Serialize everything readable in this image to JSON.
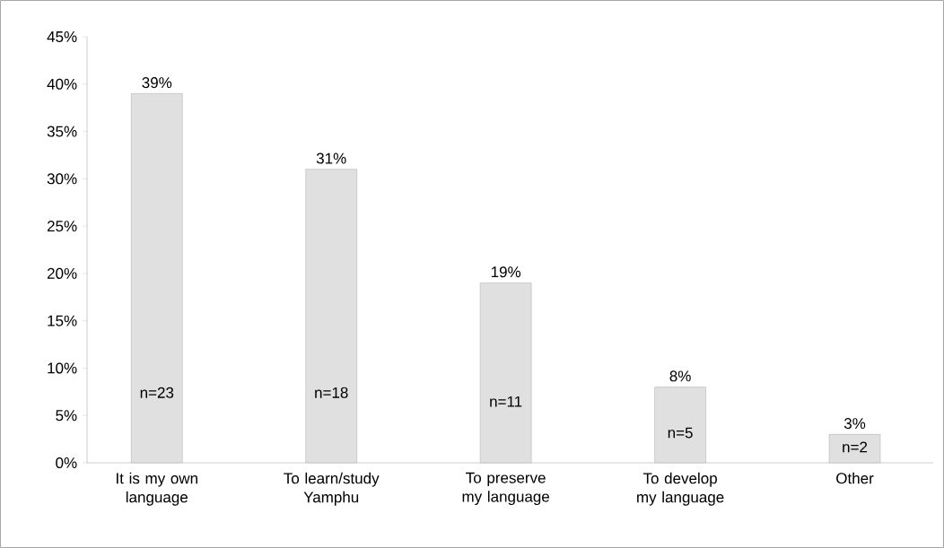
{
  "chart_data": {
    "type": "bar",
    "categories": [
      "It is my own language",
      "To learn/study Yamphu",
      "To preserve my language",
      "To develop my language",
      "Other"
    ],
    "values": [
      39,
      31,
      19,
      8,
      3
    ],
    "value_labels": [
      "39%",
      "31%",
      "19%",
      "8%",
      "3%"
    ],
    "color": "#e0e0e0",
    "ylim": [
      0,
      45
    ],
    "yticks": [
      {
        "value": 0,
        "label": "0%"
      },
      {
        "value": 5,
        "label": "5%"
      },
      {
        "value": 10,
        "label": "10%"
      },
      {
        "value": 15,
        "label": "15%"
      },
      {
        "value": 20,
        "label": "20%"
      },
      {
        "value": 25,
        "label": "25%"
      },
      {
        "value": 30,
        "label": "30%"
      },
      {
        "value": 35,
        "label": "35%"
      },
      {
        "value": 40,
        "label": "40%"
      },
      {
        "value": 45,
        "label": "45%"
      }
    ],
    "annotations": [
      "n=23",
      "n=18",
      "n=11",
      "n=5",
      "n=2"
    ]
  }
}
